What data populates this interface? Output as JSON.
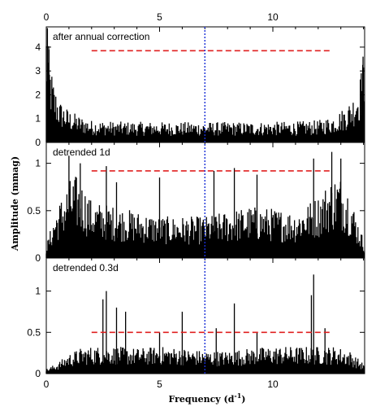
{
  "chart_data": {
    "type": "line",
    "xlabel": "Frequency (d",
    "xlabel_superscript": "-1",
    "xlabel_close": ")",
    "ylabel": "Amplitude (mmag)",
    "xlim": [
      0,
      14.05
    ],
    "x_ticks_bottom": [
      "0",
      "5",
      "10"
    ],
    "x_ticks_top": [
      "0",
      "5",
      "10"
    ],
    "x_tick_values": [
      0,
      5,
      10
    ],
    "vertical_marker": {
      "x": 7.0,
      "color": "#1a2fd6",
      "style": "dotted"
    },
    "threshold_color": "#e02020",
    "spectrum_color": "#000000",
    "panels": [
      {
        "label": "after annual correction",
        "ylim": [
          0,
          4.85
        ],
        "y_ticks": [
          "0",
          "1",
          "2",
          "3",
          "4"
        ],
        "y_tick_values": [
          0,
          1,
          2,
          3,
          4
        ],
        "threshold": {
          "x_start": 2.0,
          "x_end": 12.5,
          "y": 3.85
        },
        "envelope": [
          [
            0,
            4.8
          ],
          [
            0.15,
            3.2
          ],
          [
            0.35,
            2.2
          ],
          [
            0.6,
            1.6
          ],
          [
            1.0,
            1.25
          ],
          [
            1.5,
            1.0
          ],
          [
            2.0,
            0.85
          ],
          [
            3.0,
            0.8
          ],
          [
            5.0,
            0.78
          ],
          [
            7.0,
            0.78
          ],
          [
            9.0,
            0.78
          ],
          [
            11.0,
            0.8
          ],
          [
            12.0,
            0.85
          ],
          [
            12.6,
            1.0
          ],
          [
            13.1,
            1.3
          ],
          [
            13.5,
            1.7
          ],
          [
            13.8,
            2.3
          ],
          [
            13.95,
            3.0
          ],
          [
            14.05,
            3.6
          ]
        ],
        "spikes": [
          [
            0.05,
            4.8
          ],
          [
            0.12,
            3.9
          ],
          [
            13.98,
            3.6
          ],
          [
            13.9,
            2.9
          ]
        ]
      },
      {
        "label": "detrended 1d",
        "ylim": [
          0,
          1.22
        ],
        "y_ticks": [
          "0",
          "0.5",
          "1"
        ],
        "y_tick_values": [
          0,
          0.5,
          1
        ],
        "threshold": {
          "x_start": 2.0,
          "x_end": 12.5,
          "y": 0.92
        },
        "envelope": [
          [
            0,
            0.12
          ],
          [
            0.4,
            0.45
          ],
          [
            0.7,
            0.6
          ],
          [
            1.0,
            0.75
          ],
          [
            1.3,
            0.8
          ],
          [
            1.6,
            0.72
          ],
          [
            2.0,
            0.55
          ],
          [
            3.0,
            0.5
          ],
          [
            4.0,
            0.45
          ],
          [
            5.0,
            0.4
          ],
          [
            6.0,
            0.4
          ],
          [
            7.0,
            0.4
          ],
          [
            8.0,
            0.45
          ],
          [
            9.0,
            0.5
          ],
          [
            10.0,
            0.48
          ],
          [
            11.0,
            0.45
          ],
          [
            12.0,
            0.6
          ],
          [
            12.5,
            0.75
          ],
          [
            12.9,
            0.82
          ],
          [
            13.3,
            0.7
          ],
          [
            13.7,
            0.4
          ],
          [
            14.05,
            0.15
          ]
        ],
        "spikes": [
          [
            1.0,
            1.08
          ],
          [
            1.5,
            1.0
          ],
          [
            2.65,
            0.97
          ],
          [
            3.1,
            0.8
          ],
          [
            5.0,
            0.85
          ],
          [
            7.4,
            0.92
          ],
          [
            8.3,
            0.95
          ],
          [
            9.3,
            0.88
          ],
          [
            11.8,
            1.05
          ],
          [
            12.6,
            1.12
          ],
          [
            13.0,
            1.05
          ]
        ]
      },
      {
        "label": "detrended 0.3d",
        "ylim": [
          0,
          1.4
        ],
        "y_ticks": [
          "0",
          "0.5",
          "1"
        ],
        "y_tick_values": [
          0,
          0.5,
          1
        ],
        "threshold": {
          "x_start": 2.0,
          "x_end": 12.5,
          "y": 0.5
        },
        "envelope": [
          [
            0,
            0.05
          ],
          [
            0.5,
            0.12
          ],
          [
            1.0,
            0.22
          ],
          [
            1.5,
            0.28
          ],
          [
            2.0,
            0.3
          ],
          [
            3.0,
            0.3
          ],
          [
            4.0,
            0.28
          ],
          [
            5.0,
            0.3
          ],
          [
            6.0,
            0.28
          ],
          [
            7.0,
            0.25
          ],
          [
            8.0,
            0.25
          ],
          [
            9.0,
            0.28
          ],
          [
            10.0,
            0.3
          ],
          [
            11.0,
            0.3
          ],
          [
            12.0,
            0.3
          ],
          [
            12.8,
            0.3
          ],
          [
            13.4,
            0.25
          ],
          [
            14.05,
            0.1
          ]
        ],
        "spikes": [
          [
            2.5,
            0.9
          ],
          [
            2.65,
            1.0
          ],
          [
            3.1,
            0.8
          ],
          [
            3.5,
            0.75
          ],
          [
            5.0,
            0.5
          ],
          [
            6.0,
            0.75
          ],
          [
            7.5,
            0.55
          ],
          [
            8.3,
            0.85
          ],
          [
            9.3,
            0.5
          ],
          [
            11.7,
            0.95
          ],
          [
            11.8,
            1.2
          ],
          [
            12.3,
            0.55
          ]
        ]
      }
    ]
  }
}
